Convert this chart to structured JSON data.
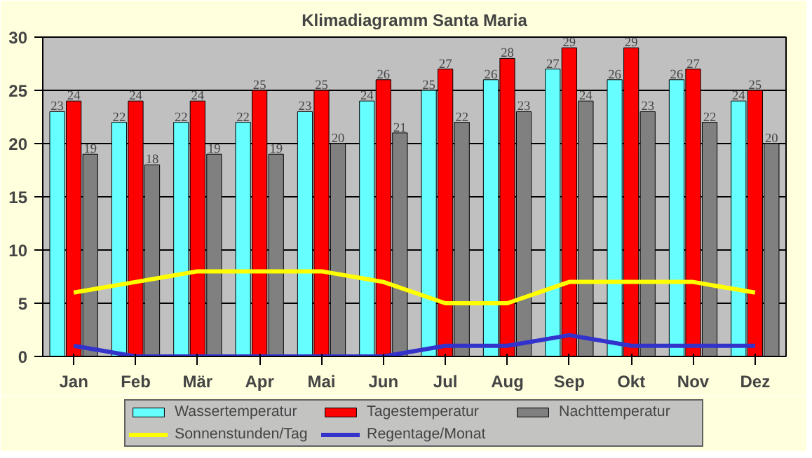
{
  "chart_data": {
    "type": "bar",
    "title": "Klimadiagramm Santa Maria",
    "categories": [
      "Jan",
      "Feb",
      "Mär",
      "Apr",
      "Mai",
      "Jun",
      "Jul",
      "Aug",
      "Sep",
      "Okt",
      "Nov",
      "Dez"
    ],
    "series": [
      {
        "name": "Wassertemperatur",
        "color": "#66ffff",
        "values": [
          23,
          22,
          22,
          22,
          23,
          24,
          25,
          26,
          27,
          26,
          26,
          24
        ],
        "value_labels": [
          "23",
          "22",
          "22",
          "22",
          "23",
          "24",
          "25",
          "26",
          "27",
          "26",
          "26",
          "24"
        ]
      },
      {
        "name": "Tagestemperatur",
        "color": "#ff0000",
        "values": [
          24,
          24,
          24,
          25,
          25,
          26,
          27,
          28,
          29,
          29,
          27,
          25
        ],
        "value_labels": [
          "24",
          "24",
          "24",
          "25",
          "25",
          "26",
          "27",
          "28",
          "29",
          "29",
          "27",
          "25"
        ]
      },
      {
        "name": "Nachttemperatur",
        "color": "#808080",
        "values": [
          19,
          18,
          19,
          19,
          20,
          21,
          22,
          23,
          24,
          23,
          22,
          20
        ],
        "value_labels": [
          "19",
          "18",
          "19",
          "19",
          "20",
          "21",
          "22",
          "23",
          "24",
          "23",
          "22",
          "20"
        ]
      },
      {
        "name": "Sonnenstunden/Tag",
        "type": "line",
        "color": "#ffff00",
        "values": [
          6,
          7,
          8,
          8,
          8,
          7,
          5,
          5,
          7,
          7,
          7,
          6
        ]
      },
      {
        "name": "Regentage/Monat",
        "type": "line",
        "color": "#3333cc",
        "values": [
          1,
          0,
          0,
          0,
          0,
          0,
          1,
          1,
          2,
          1,
          1,
          1
        ]
      }
    ],
    "ylim": [
      0,
      30
    ],
    "yticks": [
      0,
      5,
      10,
      15,
      20,
      25,
      30
    ],
    "grid": "y",
    "legend": "bottom"
  }
}
